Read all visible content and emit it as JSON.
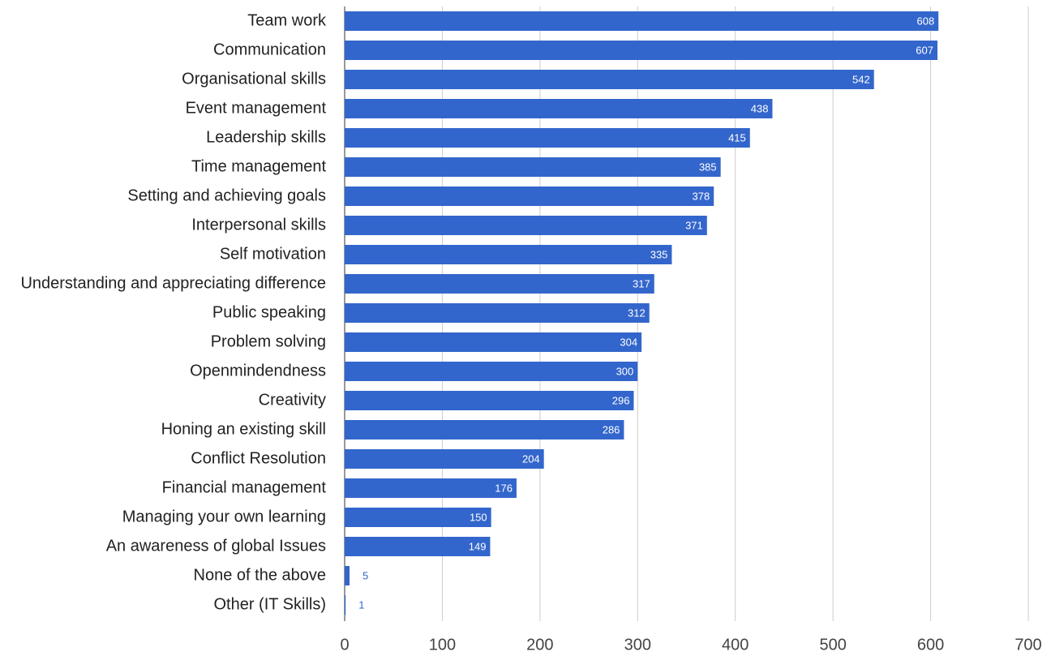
{
  "chart_data": {
    "type": "bar",
    "orientation": "horizontal",
    "categories": [
      "Team work",
      "Communication",
      "Organisational skills",
      "Event management",
      "Leadership skills",
      "Time management",
      "Setting and achieving goals",
      "Interpersonal skills",
      "Self motivation",
      "Understanding and appreciating difference",
      "Public speaking",
      "Problem solving",
      "Openmindendness",
      "Creativity",
      "Honing an existing skill",
      "Conflict Resolution",
      "Financial management",
      "Managing your own learning",
      "An awareness of global Issues",
      "None of the above",
      "Other (IT Skills)"
    ],
    "values": [
      608,
      607,
      542,
      438,
      415,
      385,
      378,
      371,
      335,
      317,
      312,
      304,
      300,
      296,
      286,
      204,
      176,
      150,
      149,
      5,
      1
    ],
    "color": "#3366cc",
    "xlim": [
      0,
      700
    ],
    "xticks": [
      0,
      100,
      200,
      300,
      400,
      500,
      600,
      700
    ],
    "grid": true
  }
}
